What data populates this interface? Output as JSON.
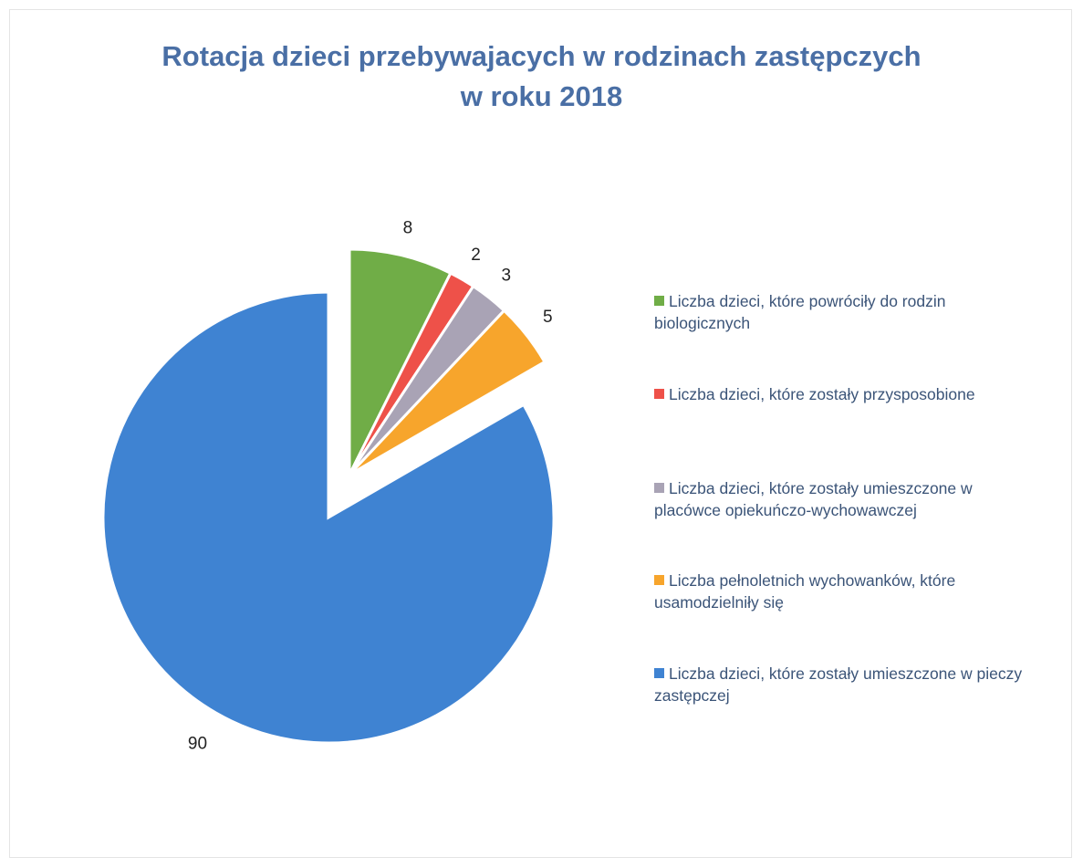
{
  "chart_data": {
    "type": "pie",
    "title": "Rotacja dzieci przebywajacych w rodzinach zastępczych\nw roku 2018",
    "categories": [
      "Liczba dzieci, które powróciły do rodzin biologicznych",
      "Liczba dzieci, które zostały przysposobione",
      "Liczba dzieci, które zostały umieszczone w placówce opiekuńczo-wychowawczej",
      "Liczba pełnoletnich wychowanków, które usamodzielniły się",
      "Liczba dzieci, które zostały umieszczone w pieczy zastępczej"
    ],
    "values": [
      8,
      2,
      3,
      5,
      90
    ],
    "colors": [
      "#70ad47",
      "#ee5149",
      "#a9a3b5",
      "#f7a52c",
      "#3f83d2"
    ],
    "legend": "right"
  }
}
